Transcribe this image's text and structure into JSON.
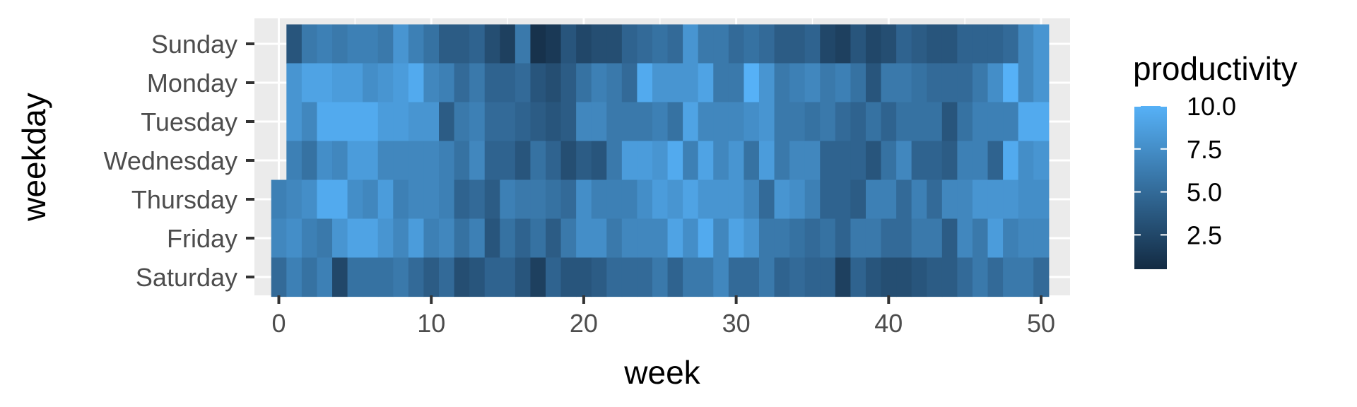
{
  "chart_data": {
    "type": "heatmap",
    "xlabel": "week",
    "ylabel": "weekday",
    "legend": {
      "title": "productivity",
      "placement": "right",
      "ticks": [
        10.0,
        7.5,
        5.0,
        2.5
      ],
      "tick_labels": [
        "10.0",
        "7.5",
        "5.0",
        "2.5"
      ],
      "range": [
        0.5,
        10.0
      ],
      "low_color": "#132B43",
      "high_color": "#56B1F7"
    },
    "x_ticks": [
      0,
      10,
      20,
      30,
      40,
      50
    ],
    "x_tick_labels": [
      "0",
      "10",
      "20",
      "30",
      "40",
      "50"
    ],
    "xlim": [
      -1.6,
      51.9
    ],
    "grid": true,
    "panel_background": "#EBEBEB",
    "weekdays": [
      "Sunday",
      "Monday",
      "Tuesday",
      "Wednesday",
      "Thursday",
      "Friday",
      "Saturday"
    ],
    "weeks": [
      0,
      1,
      2,
      3,
      4,
      5,
      6,
      7,
      8,
      9,
      10,
      11,
      12,
      13,
      14,
      15,
      16,
      17,
      18,
      19,
      20,
      21,
      22,
      23,
      24,
      25,
      26,
      27,
      28,
      29,
      30,
      31,
      32,
      33,
      34,
      35,
      36,
      37,
      38,
      39,
      40,
      41,
      42,
      43,
      44,
      45,
      46,
      47,
      48,
      49,
      50
    ],
    "values": {
      "Sunday": [
        null,
        3.5,
        6.0,
        6.5,
        6.0,
        6.5,
        6.5,
        6.0,
        8.0,
        6.5,
        5.5,
        4.0,
        4.0,
        4.5,
        3.0,
        2.0,
        6.0,
        1.0,
        1.5,
        3.5,
        2.5,
        3.0,
        3.0,
        4.5,
        5.0,
        5.5,
        5.0,
        8.0,
        6.0,
        6.0,
        5.0,
        5.5,
        5.0,
        4.0,
        4.0,
        4.5,
        2.5,
        2.0,
        3.5,
        2.5,
        3.0,
        4.5,
        4.0,
        3.5,
        3.5,
        4.5,
        4.5,
        4.5,
        5.0,
        7.0,
        8.0
      ],
      "Monday": [
        null,
        8.0,
        9.0,
        9.0,
        8.5,
        8.5,
        7.5,
        8.0,
        8.5,
        9.5,
        7.0,
        6.5,
        5.0,
        6.0,
        4.5,
        4.5,
        5.0,
        3.5,
        3.0,
        4.0,
        5.5,
        6.5,
        6.0,
        5.0,
        9.5,
        8.0,
        8.0,
        8.0,
        9.0,
        6.0,
        6.0,
        10.0,
        8.0,
        6.0,
        6.5,
        7.0,
        6.0,
        6.5,
        5.5,
        3.5,
        6.0,
        6.0,
        5.5,
        5.0,
        5.0,
        5.0,
        6.0,
        7.5,
        10.0,
        7.0,
        8.0
      ],
      "Tuesday": [
        null,
        8.0,
        7.0,
        9.5,
        9.5,
        9.5,
        9.5,
        8.5,
        8.5,
        8.0,
        8.0,
        4.0,
        6.0,
        6.5,
        5.0,
        5.0,
        4.5,
        4.0,
        3.5,
        4.0,
        7.0,
        7.0,
        6.0,
        6.0,
        6.0,
        6.5,
        5.5,
        9.0,
        7.0,
        7.0,
        7.0,
        7.5,
        8.0,
        6.0,
        6.0,
        5.5,
        6.0,
        5.0,
        4.5,
        5.5,
        4.5,
        5.5,
        5.5,
        5.5,
        3.5,
        5.5,
        6.5,
        6.5,
        6.5,
        9.5,
        9.5
      ],
      "Wednesday": [
        null,
        6.5,
        5.5,
        7.5,
        7.0,
        8.5,
        8.5,
        7.0,
        7.0,
        7.0,
        7.0,
        6.5,
        5.5,
        7.0,
        4.5,
        4.5,
        3.5,
        5.5,
        4.5,
        3.0,
        4.0,
        3.5,
        6.0,
        8.5,
        8.5,
        8.0,
        9.5,
        6.5,
        9.0,
        7.0,
        8.0,
        5.5,
        8.5,
        6.0,
        7.0,
        7.0,
        4.5,
        4.5,
        4.5,
        3.5,
        5.5,
        7.0,
        4.5,
        4.5,
        4.0,
        6.5,
        6.5,
        4.5,
        9.5,
        7.5,
        8.0
      ],
      "Thursday": [
        6.5,
        7.0,
        7.5,
        9.5,
        9.5,
        7.5,
        7.0,
        8.5,
        6.5,
        7.0,
        7.0,
        6.5,
        4.5,
        5.0,
        4.0,
        6.5,
        6.0,
        6.0,
        5.5,
        5.0,
        7.5,
        6.5,
        6.5,
        6.5,
        7.5,
        8.5,
        8.0,
        9.0,
        8.0,
        8.0,
        8.0,
        7.0,
        5.0,
        8.0,
        7.5,
        6.5,
        4.5,
        4.5,
        4.0,
        6.5,
        6.5,
        5.0,
        6.5,
        5.0,
        7.0,
        7.0,
        8.0,
        8.0,
        8.0,
        7.5,
        7.5
      ],
      "Friday": [
        7.0,
        7.5,
        6.5,
        6.0,
        8.0,
        9.0,
        9.0,
        8.0,
        7.0,
        8.5,
        6.5,
        7.0,
        5.5,
        6.5,
        3.5,
        5.5,
        4.5,
        5.5,
        4.0,
        6.0,
        7.5,
        7.5,
        6.0,
        7.0,
        7.0,
        7.0,
        9.0,
        7.5,
        9.5,
        7.0,
        9.0,
        8.0,
        6.0,
        6.0,
        5.5,
        5.0,
        5.5,
        4.5,
        6.0,
        6.0,
        5.0,
        5.0,
        6.0,
        6.0,
        4.0,
        7.0,
        6.0,
        8.5,
        6.5,
        7.0,
        7.0
      ],
      "Saturday": [
        5.0,
        6.5,
        5.5,
        6.5,
        2.5,
        5.5,
        5.5,
        5.5,
        6.0,
        5.0,
        4.0,
        5.0,
        3.0,
        3.5,
        4.5,
        4.5,
        3.5,
        2.0,
        4.5,
        3.5,
        3.5,
        4.0,
        5.0,
        5.0,
        5.0,
        6.0,
        4.5,
        6.0,
        6.0,
        7.0,
        5.0,
        5.0,
        6.0,
        4.5,
        5.0,
        4.5,
        4.5,
        2.0,
        4.5,
        3.5,
        3.0,
        3.0,
        3.5,
        4.0,
        4.0,
        5.0,
        6.0,
        5.0,
        6.0,
        6.0,
        5.0
      ]
    }
  }
}
